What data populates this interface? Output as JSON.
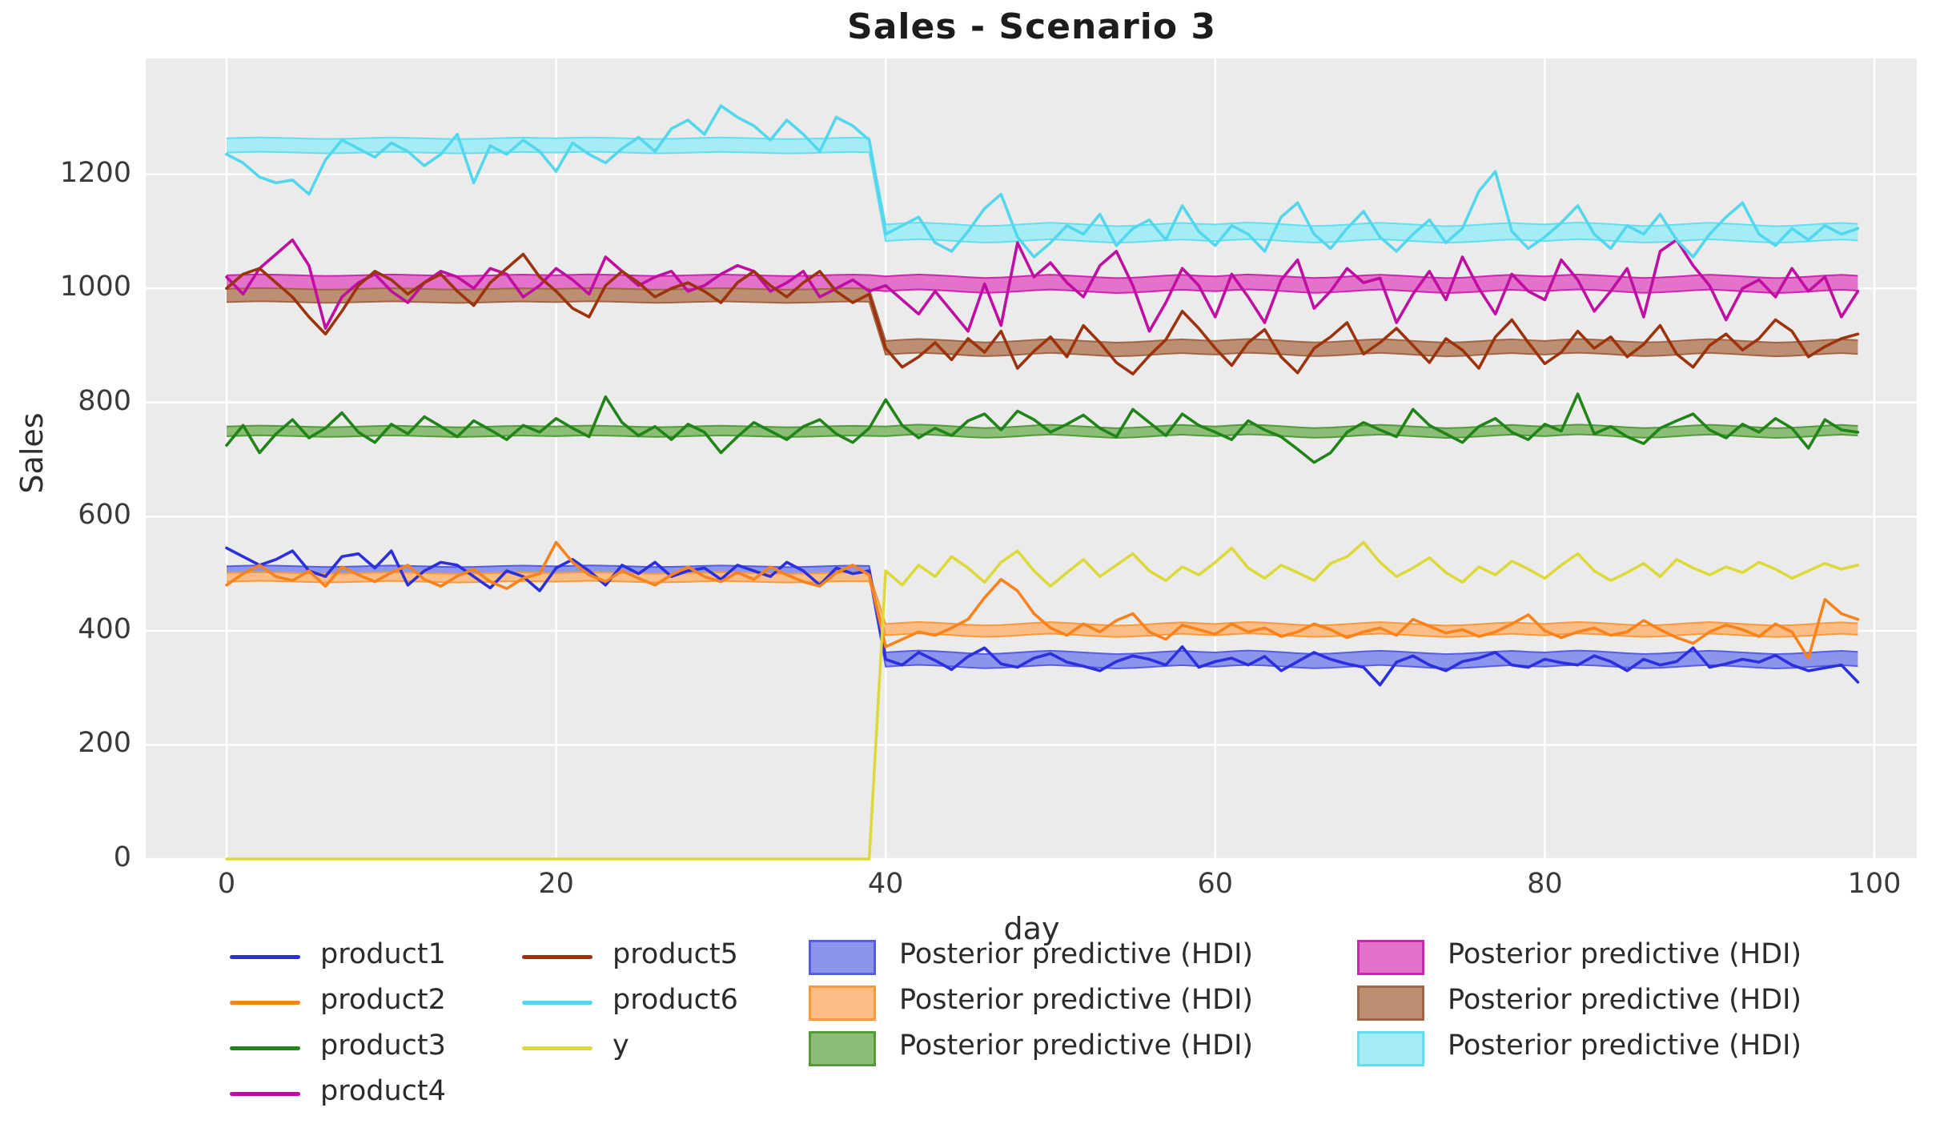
{
  "chart_data": {
    "type": "line",
    "title": "Sales - Scenario 3",
    "xlabel": "day",
    "ylabel": "Sales",
    "x_ticks": [
      0,
      20,
      40,
      60,
      80,
      100
    ],
    "y_ticks": [
      0,
      200,
      400,
      600,
      800,
      1000,
      1200
    ],
    "xlim": [
      -4.9,
      102.6
    ],
    "ylim": [
      0,
      1403
    ],
    "grid": true,
    "background_color": "#ebebeb",
    "grid_color": "#ffffff",
    "change_day": 40,
    "series": [
      {
        "name": "product1",
        "color": "#2b2fdd",
        "values": [
          545,
          530,
          515,
          525,
          540,
          505,
          495,
          530,
          535,
          510,
          540,
          480,
          505,
          520,
          515,
          495,
          475,
          505,
          495,
          470,
          510,
          525,
          505,
          480,
          515,
          500,
          520,
          495,
          505,
          510,
          490,
          515,
          505,
          495,
          520,
          505,
          480,
          510,
          500,
          505,
          350,
          340,
          362,
          348,
          332,
          355,
          370,
          342,
          336,
          352,
          360,
          345,
          338,
          330,
          346,
          356,
          350,
          340,
          372,
          336,
          346,
          352,
          340,
          355,
          330,
          346,
          362,
          350,
          342,
          336,
          305,
          345,
          356,
          340,
          330,
          346,
          352,
          362,
          340,
          336,
          350,
          344,
          340,
          356,
          346,
          330,
          350,
          340,
          346,
          370,
          336,
          342,
          350,
          345,
          357,
          340,
          330,
          335,
          340,
          310
        ]
      },
      {
        "name": "product2",
        "color": "#f8821c",
        "values": [
          480,
          500,
          515,
          495,
          488,
          505,
          478,
          512,
          498,
          486,
          502,
          515,
          490,
          478,
          496,
          508,
          486,
          474,
          492,
          500,
          555,
          520,
          498,
          486,
          505,
          492,
          480,
          498,
          512,
          495,
          486,
          502,
          490,
          512,
          498,
          486,
          478,
          502,
          515,
          498,
          372,
          385,
          398,
          392,
          405,
          420,
          458,
          490,
          470,
          430,
          405,
          392,
          412,
          398,
          418,
          430,
          398,
          385,
          410,
          402,
          394,
          412,
          398,
          405,
          390,
          398,
          412,
          402,
          388,
          398,
          405,
          392,
          420,
          408,
          396,
          402,
          390,
          398,
          412,
          428,
          400,
          388,
          398,
          405,
          392,
          398,
          418,
          402,
          388,
          378,
          398,
          410,
          402,
          390,
          412,
          398,
          352,
          455,
          430,
          420
        ]
      },
      {
        "name": "product3",
        "color": "#218418",
        "values": [
          725,
          760,
          712,
          745,
          770,
          738,
          755,
          782,
          748,
          730,
          762,
          745,
          775,
          758,
          740,
          768,
          752,
          735,
          760,
          748,
          772,
          755,
          740,
          810,
          765,
          742,
          758,
          735,
          762,
          748,
          712,
          740,
          765,
          750,
          735,
          758,
          770,
          745,
          730,
          755,
          805,
          760,
          738,
          755,
          742,
          768,
          780,
          752,
          785,
          770,
          748,
          762,
          778,
          755,
          740,
          788,
          765,
          742,
          780,
          760,
          748,
          735,
          768,
          752,
          740,
          718,
          695,
          712,
          748,
          765,
          752,
          740,
          788,
          760,
          745,
          730,
          758,
          772,
          748,
          735,
          762,
          750,
          815,
          745,
          758,
          740,
          728,
          755,
          768,
          780,
          752,
          738,
          762,
          748,
          772,
          755,
          720,
          770,
          752,
          748
        ]
      },
      {
        "name": "product4",
        "color": "#c00da2",
        "values": [
          1020,
          990,
          1035,
          1060,
          1085,
          1040,
          930,
          985,
          1010,
          1025,
          995,
          975,
          1010,
          1030,
          1020,
          1000,
          1035,
          1025,
          985,
          1005,
          1035,
          1015,
          990,
          1055,
          1030,
          1005,
          1020,
          1030,
          995,
          1005,
          1025,
          1040,
          1030,
          995,
          1010,
          1030,
          985,
          1000,
          1015,
          995,
          1005,
          980,
          955,
          995,
          960,
          925,
          1008,
          935,
          1080,
          1020,
          1045,
          1010,
          985,
          1040,
          1065,
          1005,
          925,
          975,
          1035,
          1005,
          950,
          1025,
          985,
          940,
          1015,
          1050,
          965,
          995,
          1035,
          1010,
          1018,
          940,
          990,
          1030,
          980,
          1055,
          1000,
          955,
          1025,
          995,
          980,
          1050,
          1015,
          960,
          995,
          1035,
          950,
          1065,
          1085,
          1040,
          1005,
          945,
          1000,
          1015,
          985,
          1035,
          995,
          1020,
          950,
          995
        ]
      },
      {
        "name": "product5",
        "color": "#9c330c",
        "values": [
          1000,
          1025,
          1035,
          1010,
          985,
          950,
          920,
          960,
          1005,
          1030,
          1015,
          990,
          1010,
          1025,
          995,
          970,
          1010,
          1035,
          1060,
          1020,
          995,
          965,
          950,
          1005,
          1030,
          1010,
          985,
          1000,
          1010,
          995,
          975,
          1010,
          1030,
          1005,
          985,
          1010,
          1030,
          995,
          975,
          990,
          895,
          862,
          880,
          905,
          875,
          912,
          888,
          925,
          860,
          890,
          915,
          880,
          935,
          905,
          870,
          850,
          882,
          910,
          960,
          930,
          895,
          865,
          905,
          928,
          880,
          852,
          895,
          915,
          940,
          885,
          905,
          930,
          900,
          870,
          912,
          892,
          860,
          915,
          945,
          905,
          868,
          888,
          925,
          895,
          915,
          880,
          902,
          935,
          885,
          862,
          900,
          920,
          892,
          912,
          945,
          925,
          880,
          898,
          912,
          920
        ]
      },
      {
        "name": "product6",
        "color": "#52d7ec",
        "values": [
          1235,
          1220,
          1195,
          1185,
          1190,
          1165,
          1225,
          1260,
          1245,
          1230,
          1255,
          1240,
          1215,
          1235,
          1270,
          1185,
          1250,
          1235,
          1260,
          1240,
          1205,
          1255,
          1235,
          1220,
          1245,
          1265,
          1240,
          1280,
          1295,
          1270,
          1320,
          1300,
          1285,
          1260,
          1295,
          1270,
          1240,
          1300,
          1285,
          1260,
          1095,
          1110,
          1125,
          1080,
          1065,
          1100,
          1140,
          1165,
          1090,
          1055,
          1080,
          1110,
          1095,
          1130,
          1075,
          1105,
          1120,
          1085,
          1145,
          1100,
          1075,
          1110,
          1095,
          1065,
          1125,
          1150,
          1095,
          1070,
          1105,
          1135,
          1090,
          1065,
          1095,
          1120,
          1080,
          1105,
          1170,
          1205,
          1100,
          1070,
          1090,
          1115,
          1145,
          1095,
          1070,
          1110,
          1095,
          1130,
          1085,
          1055,
          1095,
          1125,
          1150,
          1095,
          1075,
          1105,
          1085,
          1110,
          1095,
          1105
        ]
      },
      {
        "name": "y",
        "color": "#ded93a",
        "values": [
          0,
          0,
          0,
          0,
          0,
          0,
          0,
          0,
          0,
          0,
          0,
          0,
          0,
          0,
          0,
          0,
          0,
          0,
          0,
          0,
          0,
          0,
          0,
          0,
          0,
          0,
          0,
          0,
          0,
          0,
          0,
          0,
          0,
          0,
          0,
          0,
          0,
          0,
          0,
          0,
          505,
          480,
          515,
          495,
          530,
          510,
          485,
          520,
          540,
          505,
          478,
          502,
          525,
          495,
          515,
          535,
          505,
          488,
          512,
          498,
          520,
          545,
          510,
          492,
          515,
          502,
          488,
          518,
          530,
          555,
          520,
          495,
          510,
          528,
          502,
          485,
          512,
          498,
          522,
          508,
          492,
          515,
          535,
          505,
          488,
          502,
          518,
          495,
          525,
          510,
          498,
          512,
          502,
          520,
          508,
          492,
          505,
          518,
          508,
          515
        ]
      }
    ],
    "hdi_bands": [
      {
        "label": "Posterior predictive (HDI)",
        "fill": "#8d94ec",
        "edge": "#555ee3",
        "before": [
          494,
          513
        ],
        "after": [
          337,
          362
        ]
      },
      {
        "label": "Posterior predictive (HDI)",
        "fill": "#fabd86",
        "edge": "#f89a3c",
        "before": [
          486,
          501
        ],
        "after": [
          392,
          412
        ]
      },
      {
        "label": "Posterior predictive (HDI)",
        "fill": "#8cbe77",
        "edge": "#539b3b",
        "before": [
          741,
          758
        ],
        "after": [
          741,
          758
        ]
      },
      {
        "label": "Posterior predictive (HDI)",
        "fill": "#e272ca",
        "edge": "#cc25af",
        "before": [
          997,
          1023
        ],
        "after": [
          995,
          1021
        ]
      },
      {
        "label": "Posterior predictive (HDI)",
        "fill": "#bd8f72",
        "edge": "#9f6546",
        "before": [
          976,
          999
        ],
        "after": [
          884,
          908
        ]
      },
      {
        "label": "Posterior predictive (HDI)",
        "fill": "#a6ecf5",
        "edge": "#62def1",
        "before": [
          1238,
          1263
        ],
        "after": [
          1083,
          1112
        ]
      }
    ],
    "hdi_wiggle": [
      0,
      0.35,
      0.6,
      0.4,
      0.1,
      -0.25,
      -0.5,
      -0.35,
      -0.05,
      0.3,
      0.55,
      0.3,
      0,
      -0.3,
      -0.55,
      -0.4,
      -0.1,
      0.25,
      0.5,
      0.2
    ],
    "wiggle_scale": {
      "before": 2.5,
      "after": 5.5
    },
    "legend": {
      "columns": [
        {
          "items": [
            {
              "kind": "line",
              "label": "product1",
              "color": "#2b2fdd"
            },
            {
              "kind": "line",
              "label": "product2",
              "color": "#f8821c"
            },
            {
              "kind": "line",
              "label": "product3",
              "color": "#218418"
            },
            {
              "kind": "line",
              "label": "product4",
              "color": "#c00da2"
            }
          ]
        },
        {
          "items": [
            {
              "kind": "line",
              "label": "product5",
              "color": "#9c330c"
            },
            {
              "kind": "line",
              "label": "product6",
              "color": "#52d7ec"
            },
            {
              "kind": "line",
              "label": "y",
              "color": "#ded93a"
            }
          ]
        },
        {
          "items": [
            {
              "kind": "patch",
              "label": "Posterior predictive (HDI)",
              "fill": "#8d94ec",
              "edge": "#555ee3"
            },
            {
              "kind": "patch",
              "label": "Posterior predictive (HDI)",
              "fill": "#fabd86",
              "edge": "#f89a3c"
            },
            {
              "kind": "patch",
              "label": "Posterior predictive (HDI)",
              "fill": "#8cbe77",
              "edge": "#539b3b"
            }
          ]
        },
        {
          "items": [
            {
              "kind": "patch",
              "label": "Posterior predictive (HDI)",
              "fill": "#e272ca",
              "edge": "#cc25af"
            },
            {
              "kind": "patch",
              "label": "Posterior predictive (HDI)",
              "fill": "#bd8f72",
              "edge": "#9f6546"
            },
            {
              "kind": "patch",
              "label": "Posterior predictive (HDI)",
              "fill": "#a6ecf5",
              "edge": "#62def1"
            }
          ]
        }
      ]
    }
  }
}
